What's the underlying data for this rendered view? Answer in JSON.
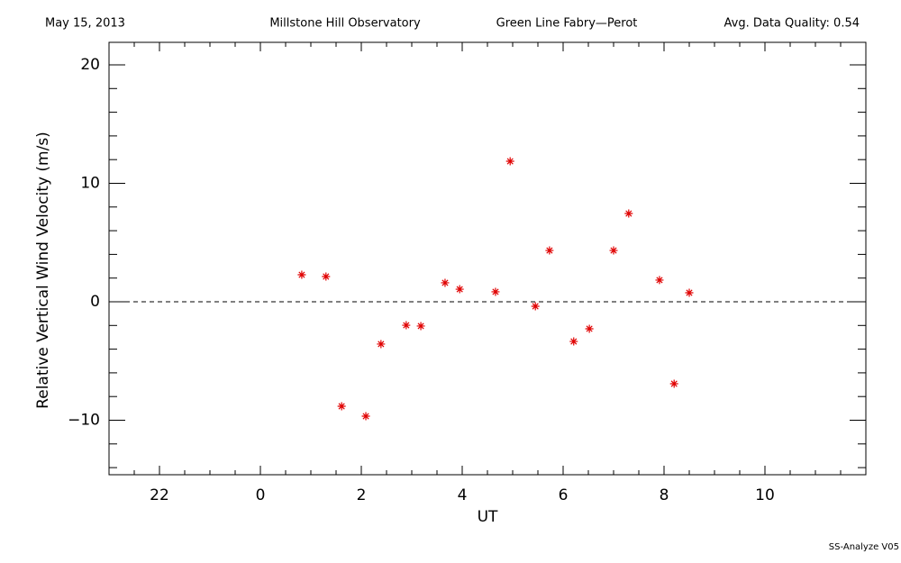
{
  "chart_data": {
    "type": "scatter",
    "header": [
      "May 15, 2013",
      "Millstone Hill Observatory",
      "Green Line Fabry—Perot",
      "Avg. Data Quality: 0.54"
    ],
    "footer": "SS-Analyze V05",
    "xlabel": "UT",
    "ylabel": "Relative Vertical Wind Velocity (m/s)",
    "color": "#e00000",
    "zero_line": 0,
    "xlim": [
      -3,
      12
    ],
    "ylim": [
      -14.6,
      21.9
    ],
    "xticks": [
      {
        "value": -2,
        "label": "22"
      },
      0,
      2,
      4,
      6,
      8,
      10
    ],
    "yticks": [
      {
        "value": -10,
        "label": "−10"
      },
      0,
      10,
      20
    ],
    "xminorticks": [
      -2.5,
      -1.5,
      -1,
      -0.5,
      0.5,
      1,
      1.5,
      2.5,
      3,
      3.5,
      4.5,
      5,
      5.5,
      6.5,
      7,
      7.5,
      8.5,
      9,
      9.5,
      10.5,
      11,
      11.5
    ],
    "yminorticks": [
      -14,
      -12,
      -8,
      -6,
      -4,
      -2,
      2,
      4,
      6,
      8,
      12,
      14,
      16,
      18
    ],
    "x": [
      0.82,
      1.3,
      1.61,
      2.09,
      2.39,
      2.89,
      3.18,
      3.66,
      3.95,
      4.66,
      4.95,
      5.45,
      5.73,
      6.21,
      6.52,
      7.0,
      7.3,
      7.91,
      8.2,
      8.5
    ],
    "values": [
      2.28,
      2.13,
      -8.82,
      -9.66,
      -3.57,
      -1.98,
      -2.05,
      1.6,
      1.06,
      0.84,
      11.86,
      -0.38,
      4.33,
      -3.35,
      -2.28,
      4.33,
      7.45,
      1.83,
      -6.92,
      0.76
    ]
  }
}
